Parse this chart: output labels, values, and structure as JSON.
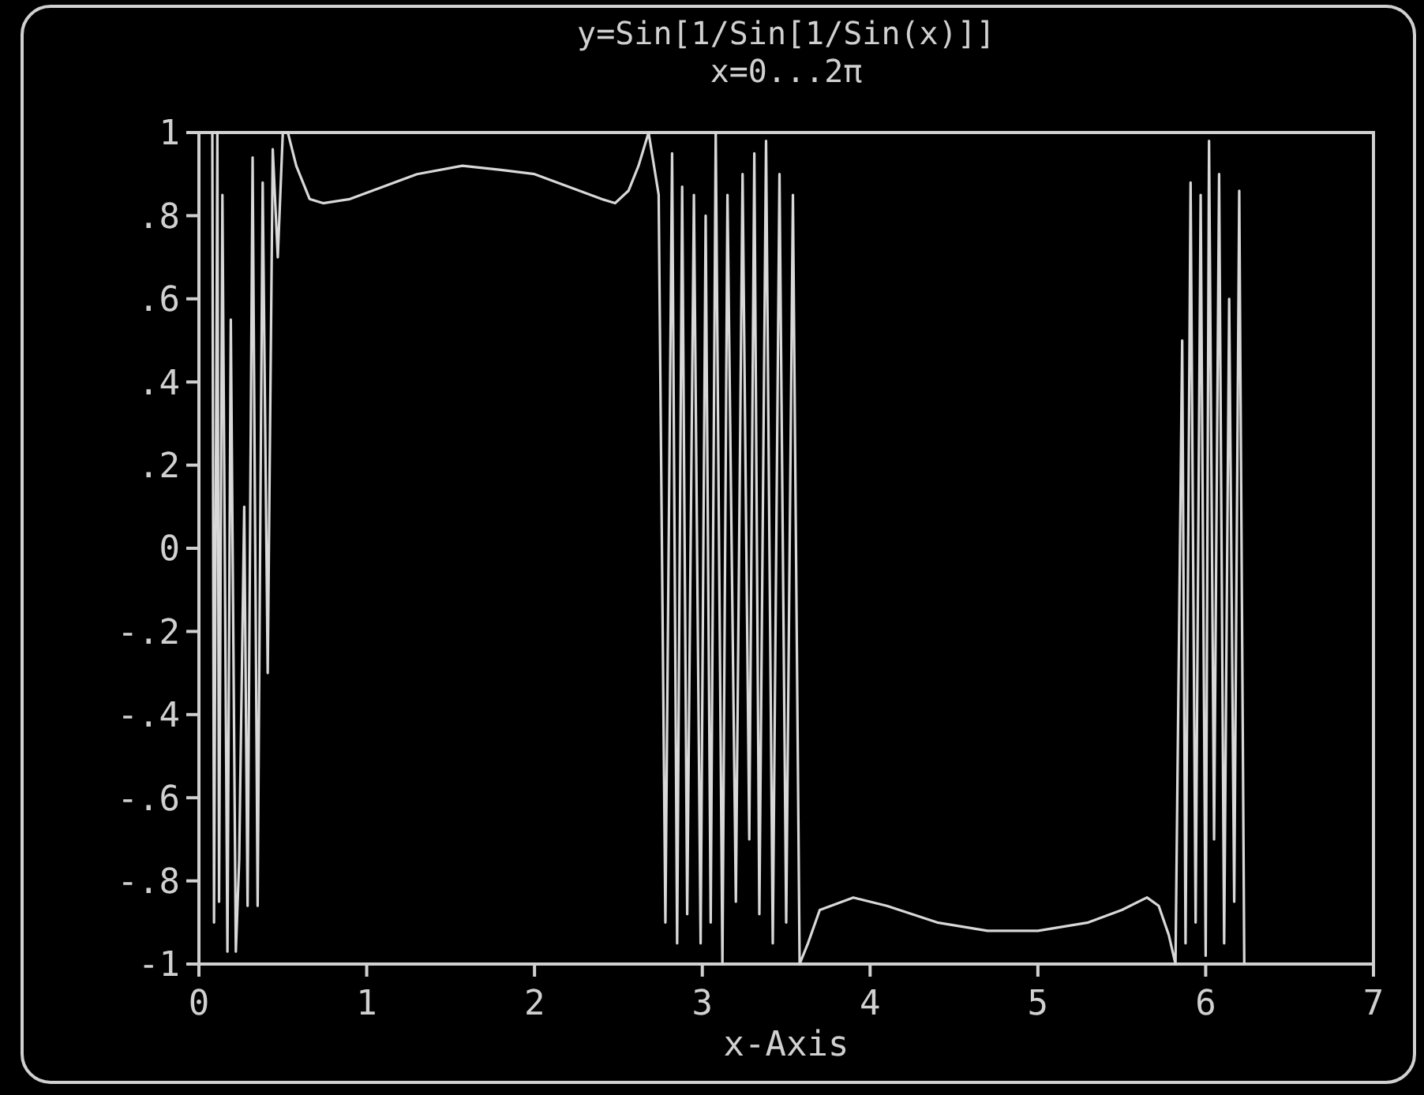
{
  "chart_data": {
    "type": "line",
    "title": "y=Sin[1/Sin[1/Sin(x)]]",
    "subtitle": "x=0...2π",
    "xlabel": "x-Axis",
    "xlim": [
      0,
      7
    ],
    "xticks": [
      0,
      1,
      2,
      3,
      4,
      5,
      6,
      7
    ],
    "ylim": [
      -1,
      1
    ],
    "yticks": [
      {
        "value": -1,
        "label": "-1"
      },
      {
        "value": -0.8,
        "label": "-.8"
      },
      {
        "value": -0.6,
        "label": "-.6"
      },
      {
        "value": -0.4,
        "label": "-.4"
      },
      {
        "value": -0.2,
        "label": "-.2"
      },
      {
        "value": 0,
        "label": "0"
      },
      {
        "value": 0.2,
        "label": ".2"
      },
      {
        "value": 0.4,
        "label": ".4"
      },
      {
        "value": 0.6,
        "label": ".6"
      },
      {
        "value": 0.8,
        "label": ".8"
      },
      {
        "value": 1,
        "label": "1"
      }
    ],
    "series": [
      {
        "color": "#d8d8d8",
        "x": [
          0.08,
          0.09,
          0.11,
          0.12,
          0.14,
          0.17,
          0.19,
          0.22,
          0.24,
          0.27,
          0.29,
          0.32,
          0.35,
          0.38,
          0.41,
          0.44,
          0.47,
          0.5,
          0.53,
          0.58,
          0.66,
          0.74,
          0.9,
          1.1,
          1.3,
          1.57,
          1.8,
          2.0,
          2.2,
          2.4,
          2.48,
          2.56,
          2.62,
          2.68,
          2.74,
          2.78,
          2.82,
          2.85,
          2.88,
          2.91,
          2.95,
          2.99,
          3.02,
          3.05,
          3.08,
          3.12,
          3.15,
          3.2,
          3.24,
          3.28,
          3.31,
          3.34,
          3.38,
          3.42,
          3.46,
          3.5,
          3.54,
          3.58,
          3.63,
          3.7,
          3.9,
          4.1,
          4.4,
          4.7,
          5.0,
          5.3,
          5.5,
          5.65,
          5.72,
          5.78,
          5.82,
          5.86,
          5.88,
          5.91,
          5.94,
          5.97,
          6.0,
          6.02,
          6.05,
          6.08,
          6.11,
          6.14,
          6.17,
          6.2,
          6.23
        ],
        "values": [
          1,
          -0.9,
          1,
          -0.85,
          0.85,
          -0.97,
          0.55,
          -0.97,
          -0.75,
          0.1,
          -0.86,
          0.94,
          -0.86,
          0.88,
          -0.3,
          0.96,
          0.7,
          1,
          1,
          0.92,
          0.84,
          0.83,
          0.84,
          0.87,
          0.9,
          0.92,
          0.91,
          0.9,
          0.87,
          0.84,
          0.83,
          0.86,
          0.92,
          1,
          0.85,
          -0.9,
          0.95,
          -0.95,
          0.87,
          -0.88,
          0.85,
          -0.95,
          0.8,
          -0.9,
          1,
          -1,
          0.85,
          -0.85,
          0.9,
          -0.7,
          0.95,
          -0.88,
          0.98,
          -0.95,
          0.9,
          -0.9,
          0.85,
          -1,
          -0.95,
          -0.87,
          -0.84,
          -0.86,
          -0.9,
          -0.92,
          -0.92,
          -0.9,
          -0.87,
          -0.84,
          -0.86,
          -0.93,
          -1,
          0.5,
          -0.95,
          0.88,
          -0.9,
          0.85,
          -0.98,
          0.98,
          -0.7,
          0.9,
          -0.95,
          0.6,
          -0.85,
          0.86,
          -1
        ]
      }
    ]
  }
}
